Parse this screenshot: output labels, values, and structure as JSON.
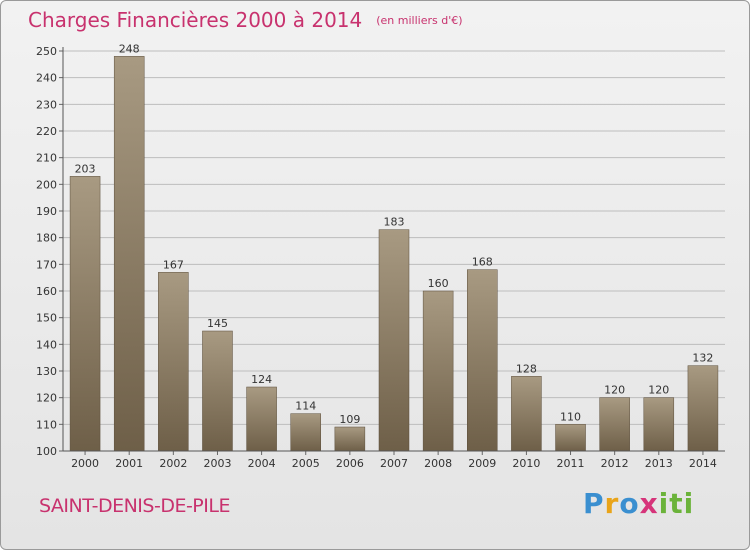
{
  "header": {
    "title": "Charges Financières 2000 à 2014",
    "unit": "(en milliers d'€)"
  },
  "footer": {
    "commune": "SAINT-DENIS-DE-PILE",
    "logo": "Proxiti"
  },
  "colors": {
    "title": "#c8326e",
    "bar_top": "#a89a82",
    "bar_bottom": "#6e5f48",
    "grid": "#bdbdbd"
  },
  "chart_data": {
    "type": "bar",
    "title": "Charges Financières 2000 à 2014",
    "subtitle": "(en milliers d'€)",
    "categories": [
      "2000",
      "2001",
      "2002",
      "2003",
      "2004",
      "2005",
      "2006",
      "2007",
      "2008",
      "2009",
      "2010",
      "2011",
      "2012",
      "2013",
      "2014"
    ],
    "values": [
      203,
      248,
      167,
      145,
      124,
      114,
      109,
      183,
      160,
      168,
      128,
      110,
      120,
      120,
      132
    ],
    "ylim": [
      100,
      250
    ],
    "yticks": [
      100,
      110,
      120,
      130,
      140,
      150,
      160,
      170,
      180,
      190,
      200,
      210,
      220,
      230,
      240,
      250
    ],
    "grid": true,
    "data_labels": true
  }
}
